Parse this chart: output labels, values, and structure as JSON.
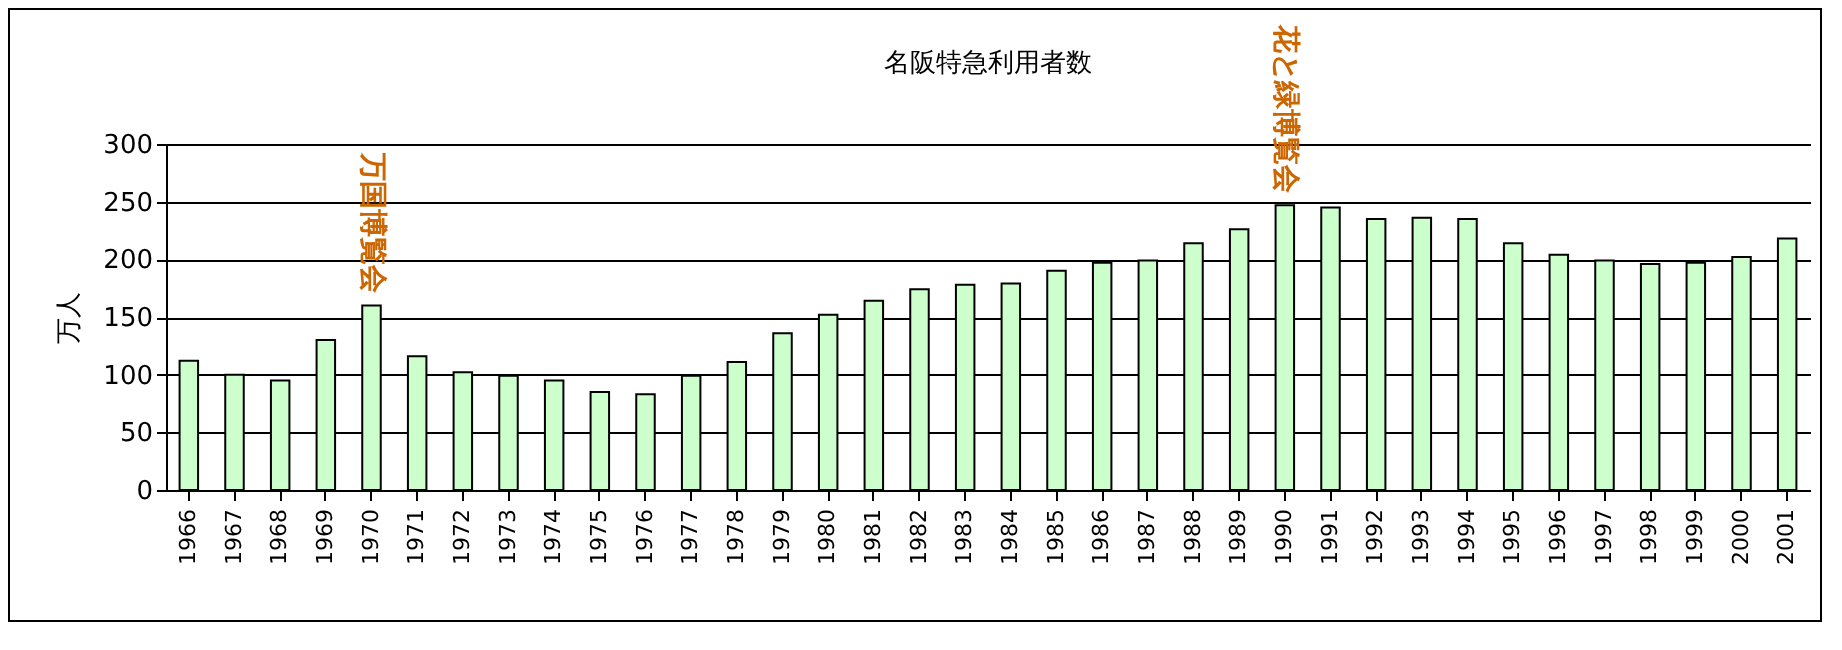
{
  "chart_data": {
    "type": "bar",
    "title": "名阪特急利用者数",
    "ylabel": "万人",
    "categories": [
      "1966",
      "1967",
      "1968",
      "1969",
      "1970",
      "1971",
      "1972",
      "1973",
      "1974",
      "1975",
      "1976",
      "1977",
      "1978",
      "1979",
      "1980",
      "1981",
      "1982",
      "1983",
      "1984",
      "1985",
      "1986",
      "1987",
      "1988",
      "1989",
      "1990",
      "1991",
      "1992",
      "1993",
      "1994",
      "1995",
      "1996",
      "1997",
      "1998",
      "1999",
      "2000",
      "2001"
    ],
    "values": [
      112,
      100,
      95,
      130,
      160,
      116,
      102,
      99,
      95,
      85,
      83,
      99,
      111,
      136,
      152,
      164,
      174,
      178,
      179,
      190,
      197,
      199,
      214,
      226,
      247,
      245,
      235,
      236,
      235,
      214,
      204,
      199,
      196,
      197,
      202,
      218
    ],
    "color": "#ccffcc",
    "ylim": [
      0,
      300
    ],
    "yticks": [
      0,
      50,
      100,
      150,
      200,
      250,
      300
    ],
    "grid": "y",
    "annotations": [
      {
        "text": "万国博覧会",
        "x": "1970",
        "y": 160
      },
      {
        "text": "花と緑博覧会",
        "x": "1990",
        "y": 247
      }
    ]
  }
}
